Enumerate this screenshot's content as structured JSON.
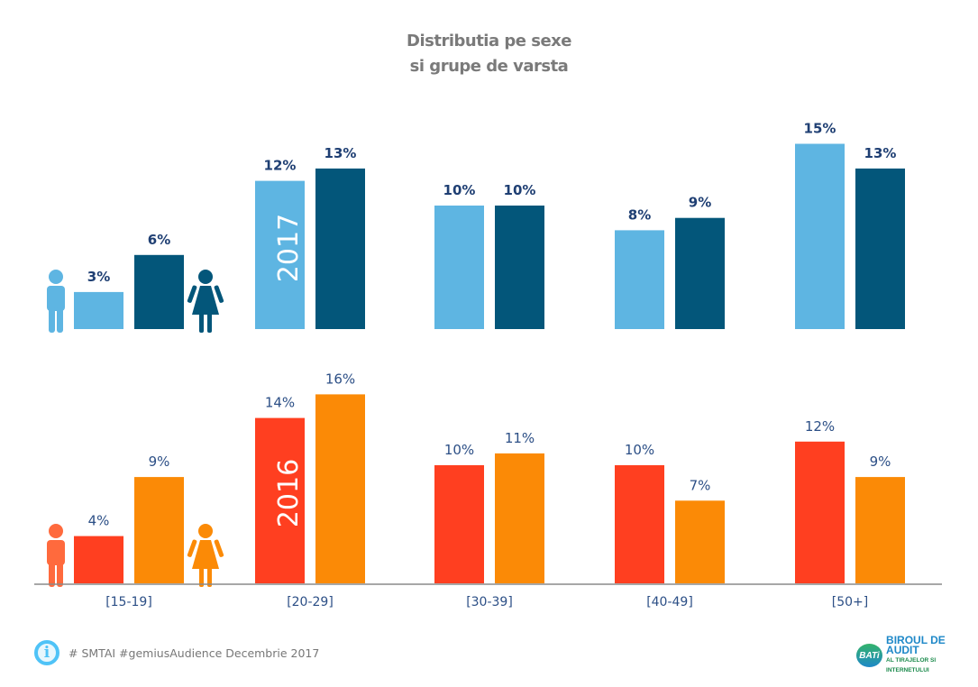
{
  "title_line1": "Distributia pe sexe",
  "title_line2": "si grupe de varsta",
  "chart_data": [
    {
      "type": "bar",
      "title": "Distributia pe sexe si grupe de varsta",
      "year_label": "2017",
      "categories": [
        "[15-19]",
        "[20-29]",
        "[30-39]",
        "[40-49]",
        "[50+]"
      ],
      "series": [
        {
          "name": "Barbati",
          "color": "#5eb5e2",
          "values": [
            3,
            12,
            10,
            8,
            15
          ],
          "labels": [
            "3%",
            "12%",
            "10%",
            "8%",
            "15%"
          ]
        },
        {
          "name": "Femei",
          "color": "#03567a",
          "values": [
            6,
            13,
            10,
            9,
            13
          ],
          "labels": [
            "6%",
            "13%",
            "10%",
            "9%",
            "13%"
          ]
        }
      ],
      "ylim": [
        0,
        16
      ],
      "label_color": "#1f3f73"
    },
    {
      "type": "bar",
      "title": "Distributia pe sexe si grupe de varsta",
      "year_label": "2016",
      "categories": [
        "[15-19]",
        "[20-29]",
        "[30-39]",
        "[40-49]",
        "[50+]"
      ],
      "series": [
        {
          "name": "Barbati",
          "color": "#ff3f20",
          "values": [
            4,
            14,
            10,
            10,
            12
          ],
          "labels": [
            "4%",
            "14%",
            "10%",
            "10%",
            "12%"
          ]
        },
        {
          "name": "Femei",
          "color": "#fb8a06",
          "values": [
            9,
            16,
            11,
            7,
            9
          ],
          "labels": [
            "9%",
            "16%",
            "11%",
            "7%",
            "9%"
          ]
        }
      ],
      "ylim": [
        0,
        16
      ],
      "label_color": "#2c4f86"
    }
  ],
  "footer": {
    "text": "# SMTAI #gemiusAudience Decembrie 2017",
    "logo_mark": "BATi",
    "logo_line1": "BIROUL DE AUDIT",
    "logo_line2": "AL TIRAJELOR SI INTERNETULUI"
  }
}
